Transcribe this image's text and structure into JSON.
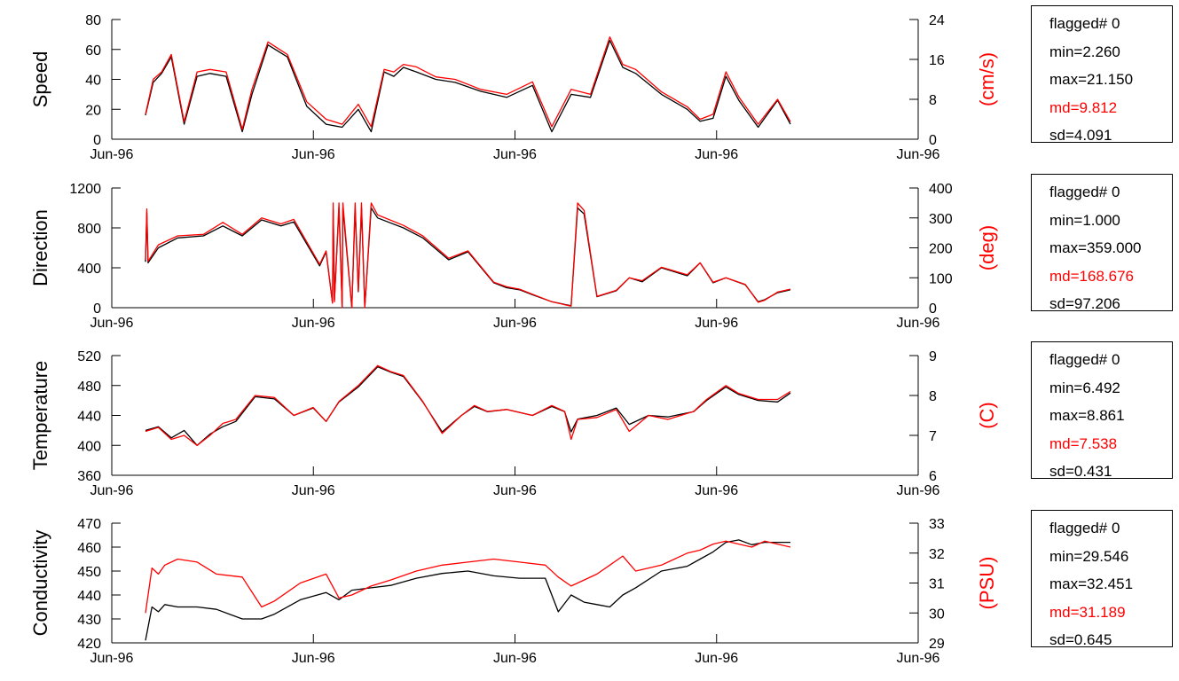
{
  "colors": {
    "primary": "#000000",
    "secondary": "#ff0000"
  },
  "chart_data": [
    {
      "type": "line",
      "ylabel": "Speed",
      "unit_label": "(cm/s)",
      "x_ticks": [
        "Jun-96",
        "Jun-96",
        "Jun-96",
        "Jun-96",
        "Jun-96"
      ],
      "ylim_left": [
        0,
        80
      ],
      "yticks_left": [
        0,
        20,
        40,
        60,
        80
      ],
      "ylim_right": [
        0,
        24
      ],
      "yticks_right": [
        0,
        8,
        16,
        24
      ],
      "series": [
        {
          "axis": "left",
          "color": "#000000",
          "x": [
            0.0,
            0.012,
            0.025,
            0.04,
            0.06,
            0.08,
            0.1,
            0.125,
            0.15,
            0.165,
            0.19,
            0.22,
            0.25,
            0.28,
            0.305,
            0.33,
            0.35,
            0.37,
            0.385,
            0.4,
            0.42,
            0.45,
            0.48,
            0.52,
            0.56,
            0.6,
            0.63,
            0.66,
            0.69,
            0.72,
            0.74,
            0.76,
            0.8,
            0.84,
            0.86,
            0.88,
            0.9,
            0.92,
            0.95,
            0.98,
            1.0
          ],
          "y": [
            16,
            38,
            44,
            55,
            10,
            42,
            44,
            42,
            5,
            30,
            63,
            55,
            22,
            10,
            8,
            20,
            5,
            45,
            42,
            48,
            45,
            40,
            38,
            32,
            28,
            36,
            5,
            30,
            28,
            66,
            48,
            44,
            30,
            20,
            12,
            14,
            42,
            26,
            8,
            26,
            10
          ]
        },
        {
          "axis": "right",
          "color": "#ff0000",
          "x": [
            0.0,
            0.012,
            0.025,
            0.04,
            0.06,
            0.08,
            0.1,
            0.125,
            0.15,
            0.165,
            0.19,
            0.22,
            0.25,
            0.28,
            0.305,
            0.33,
            0.35,
            0.37,
            0.385,
            0.4,
            0.42,
            0.45,
            0.48,
            0.52,
            0.56,
            0.6,
            0.63,
            0.66,
            0.69,
            0.72,
            0.74,
            0.76,
            0.8,
            0.84,
            0.86,
            0.88,
            0.9,
            0.92,
            0.95,
            0.98,
            1.0
          ],
          "y": [
            5,
            12,
            13.5,
            17,
            3.5,
            13.5,
            14,
            13.5,
            2,
            10,
            19.5,
            17,
            7.5,
            4,
            3,
            7,
            2.5,
            14,
            13.5,
            15,
            14.5,
            12.5,
            12,
            10,
            9,
            11.5,
            2.5,
            10,
            9,
            20.5,
            15,
            14,
            9.5,
            6.5,
            4,
            5,
            13.5,
            8.5,
            3,
            8,
            3.5
          ]
        }
      ],
      "stats": {
        "flagged": "flagged# 0",
        "min": "min=2.260",
        "max": "max=21.150",
        "md": "md=9.812",
        "sd": "sd=4.091"
      }
    },
    {
      "type": "line",
      "ylabel": "Direction",
      "unit_label": "(deg)",
      "x_ticks": [
        "Jun-96",
        "Jun-96",
        "Jun-96",
        "Jun-96",
        "Jun-96"
      ],
      "ylim_left": [
        0,
        1200
      ],
      "yticks_left": [
        0,
        400,
        800,
        1200
      ],
      "ylim_right": [
        0,
        400
      ],
      "yticks_right": [
        0,
        100,
        200,
        300,
        400
      ],
      "series": [
        {
          "axis": "left",
          "color": "#000000",
          "x": [
            0.0,
            0.002,
            0.004,
            0.02,
            0.05,
            0.09,
            0.12,
            0.15,
            0.18,
            0.21,
            0.23,
            0.27,
            0.28,
            0.29,
            0.291,
            0.293,
            0.3,
            0.305,
            0.306,
            0.32,
            0.325,
            0.33,
            0.335,
            0.34,
            0.35,
            0.36,
            0.4,
            0.43,
            0.47,
            0.5,
            0.54,
            0.56,
            0.58,
            0.6,
            0.63,
            0.66,
            0.67,
            0.68,
            0.7,
            0.73,
            0.75,
            0.77,
            0.8,
            0.84,
            0.86,
            0.88,
            0.9,
            0.93,
            0.95,
            0.96,
            0.98,
            1.0
          ],
          "y": [
            460,
            950,
            450,
            600,
            700,
            720,
            820,
            720,
            880,
            820,
            860,
            420,
            560,
            50,
            980,
            80,
            1000,
            0,
            1000,
            0,
            1000,
            160,
            1000,
            0,
            1000,
            900,
            800,
            700,
            480,
            560,
            250,
            200,
            180,
            130,
            60,
            20,
            1000,
            940,
            110,
            170,
            300,
            260,
            400,
            320,
            450,
            250,
            300,
            230,
            60,
            80,
            150,
            180
          ]
        },
        {
          "axis": "right",
          "color": "#ff0000",
          "x": [
            0.0,
            0.002,
            0.004,
            0.02,
            0.05,
            0.09,
            0.12,
            0.15,
            0.18,
            0.21,
            0.23,
            0.27,
            0.28,
            0.29,
            0.291,
            0.293,
            0.3,
            0.305,
            0.306,
            0.32,
            0.325,
            0.33,
            0.335,
            0.34,
            0.35,
            0.36,
            0.4,
            0.43,
            0.47,
            0.5,
            0.54,
            0.56,
            0.58,
            0.6,
            0.63,
            0.66,
            0.67,
            0.68,
            0.7,
            0.73,
            0.75,
            0.77,
            0.8,
            0.84,
            0.86,
            0.88,
            0.9,
            0.93,
            0.95,
            0.96,
            0.98,
            1.0
          ],
          "y": [
            160,
            330,
            155,
            210,
            240,
            245,
            285,
            245,
            300,
            280,
            295,
            145,
            190,
            15,
            350,
            20,
            350,
            0,
            350,
            0,
            350,
            55,
            350,
            0,
            350,
            310,
            275,
            240,
            165,
            190,
            85,
            70,
            62,
            45,
            20,
            5,
            350,
            325,
            38,
            58,
            100,
            90,
            135,
            110,
            150,
            85,
            100,
            78,
            18,
            25,
            52,
            62
          ]
        }
      ],
      "stats": {
        "flagged": "flagged# 0",
        "min": "min=1.000",
        "max": "max=359.000",
        "md": "md=168.676",
        "sd": "sd=97.206"
      }
    },
    {
      "type": "line",
      "ylabel": "Temperature",
      "unit_label": "(C)",
      "x_ticks": [
        "Jun-96",
        "Jun-96",
        "Jun-96",
        "Jun-96",
        "Jun-96"
      ],
      "ylim_left": [
        360,
        520
      ],
      "yticks_left": [
        360,
        400,
        440,
        480,
        520
      ],
      "ylim_right": [
        6,
        9
      ],
      "yticks_right": [
        6,
        7,
        8,
        9
      ],
      "series": [
        {
          "axis": "left",
          "color": "#000000",
          "x": [
            0.0,
            0.02,
            0.04,
            0.06,
            0.08,
            0.1,
            0.12,
            0.14,
            0.17,
            0.2,
            0.23,
            0.26,
            0.28,
            0.3,
            0.33,
            0.36,
            0.38,
            0.4,
            0.43,
            0.46,
            0.49,
            0.51,
            0.53,
            0.56,
            0.6,
            0.63,
            0.65,
            0.66,
            0.67,
            0.7,
            0.73,
            0.75,
            0.78,
            0.81,
            0.85,
            0.87,
            0.9,
            0.92,
            0.95,
            0.98,
            1.0
          ],
          "y": [
            420,
            425,
            410,
            420,
            400,
            415,
            425,
            432,
            465,
            462,
            440,
            450,
            432,
            458,
            478,
            505,
            498,
            492,
            458,
            418,
            440,
            452,
            445,
            448,
            440,
            452,
            445,
            418,
            435,
            440,
            450,
            428,
            440,
            438,
            445,
            460,
            478,
            468,
            460,
            458,
            470
          ]
        },
        {
          "axis": "right",
          "color": "#ff0000",
          "x": [
            0.0,
            0.02,
            0.04,
            0.06,
            0.08,
            0.1,
            0.12,
            0.14,
            0.17,
            0.2,
            0.23,
            0.26,
            0.28,
            0.3,
            0.33,
            0.36,
            0.38,
            0.4,
            0.43,
            0.46,
            0.49,
            0.51,
            0.53,
            0.56,
            0.6,
            0.63,
            0.65,
            0.66,
            0.67,
            0.7,
            0.73,
            0.75,
            0.78,
            0.81,
            0.85,
            0.87,
            0.9,
            0.92,
            0.95,
            0.98,
            1.0
          ],
          "y": [
            7.1,
            7.2,
            6.9,
            7.0,
            6.75,
            7.0,
            7.3,
            7.4,
            8.0,
            7.95,
            7.5,
            7.7,
            7.35,
            7.85,
            8.25,
            8.75,
            8.6,
            8.5,
            7.85,
            7.05,
            7.5,
            7.75,
            7.6,
            7.65,
            7.5,
            7.75,
            7.6,
            6.9,
            7.4,
            7.45,
            7.65,
            7.1,
            7.5,
            7.4,
            7.6,
            7.9,
            8.25,
            8.05,
            7.9,
            7.9,
            8.1
          ]
        }
      ],
      "stats": {
        "flagged": "flagged# 0",
        "min": "min=6.492",
        "max": "max=8.861",
        "md": "md=7.538",
        "sd": "sd=0.431"
      }
    },
    {
      "type": "line",
      "ylabel": "Conductivity",
      "unit_label": "(PSU)",
      "x_ticks": [
        "Jun-96",
        "Jun-96",
        "Jun-96",
        "Jun-96",
        "Jun-96"
      ],
      "ylim_left": [
        420,
        470
      ],
      "yticks_left": [
        420,
        430,
        440,
        450,
        460,
        470
      ],
      "ylim_right": [
        29,
        33
      ],
      "yticks_right": [
        29,
        30,
        31,
        32,
        33
      ],
      "series": [
        {
          "axis": "left",
          "color": "#000000",
          "x": [
            0.0,
            0.01,
            0.02,
            0.03,
            0.05,
            0.08,
            0.11,
            0.15,
            0.18,
            0.2,
            0.24,
            0.28,
            0.3,
            0.32,
            0.35,
            0.38,
            0.42,
            0.46,
            0.5,
            0.54,
            0.58,
            0.62,
            0.64,
            0.66,
            0.68,
            0.7,
            0.72,
            0.74,
            0.76,
            0.8,
            0.84,
            0.86,
            0.88,
            0.9,
            0.92,
            0.94,
            0.96,
            0.98,
            1.0
          ],
          "y": [
            421,
            435,
            433,
            436,
            435,
            435,
            434,
            430,
            430,
            432,
            438,
            441,
            438,
            442,
            443,
            444,
            447,
            449,
            450,
            448,
            447,
            447,
            433,
            440,
            437,
            436,
            435,
            440,
            443,
            450,
            452,
            455,
            458,
            462,
            463,
            461,
            462,
            462,
            462
          ]
        },
        {
          "axis": "right",
          "color": "#ff0000",
          "x": [
            0.0,
            0.01,
            0.02,
            0.03,
            0.05,
            0.08,
            0.11,
            0.15,
            0.18,
            0.2,
            0.24,
            0.28,
            0.3,
            0.32,
            0.35,
            0.38,
            0.42,
            0.46,
            0.5,
            0.54,
            0.58,
            0.62,
            0.64,
            0.66,
            0.68,
            0.7,
            0.72,
            0.74,
            0.76,
            0.8,
            0.84,
            0.86,
            0.88,
            0.9,
            0.92,
            0.94,
            0.96,
            0.98,
            1.0
          ],
          "y": [
            30.0,
            31.5,
            31.3,
            31.6,
            31.8,
            31.7,
            31.3,
            31.2,
            30.2,
            30.4,
            31.0,
            31.3,
            30.5,
            30.6,
            30.9,
            31.1,
            31.4,
            31.6,
            31.7,
            31.8,
            31.7,
            31.6,
            31.2,
            30.9,
            31.1,
            31.3,
            31.6,
            31.9,
            31.4,
            31.6,
            32.0,
            32.1,
            32.3,
            32.4,
            32.3,
            32.2,
            32.4,
            32.3,
            32.2
          ]
        }
      ],
      "stats": {
        "flagged": "flagged# 0",
        "min": "min=29.546",
        "max": "max=32.451",
        "md": "md=31.189",
        "sd": "sd=0.645"
      }
    }
  ]
}
